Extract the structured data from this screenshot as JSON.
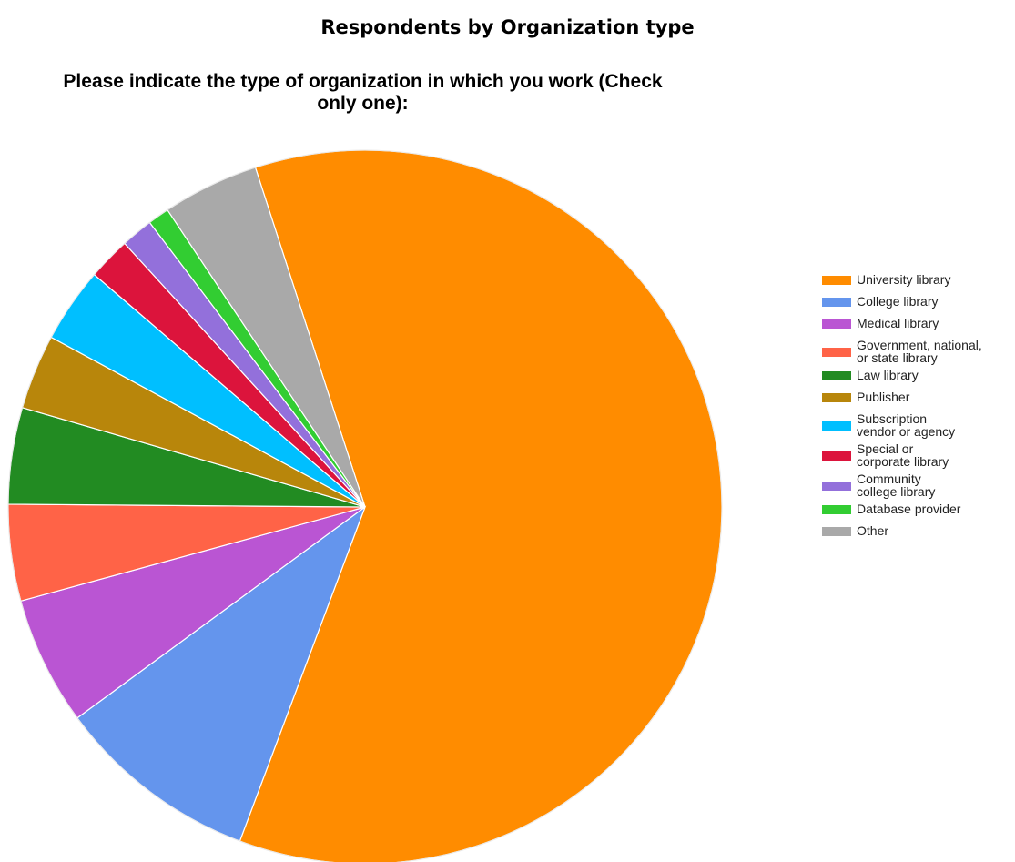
{
  "page_title": "Respondents by Organization type",
  "chart_data": {
    "type": "pie",
    "title_lines": [
      "Please indicate the type of organization in which you work (Check",
      "only one):"
    ],
    "legend_position": "right",
    "slices": [
      {
        "label": "University library",
        "value": 62.5,
        "color": "#ff8c00"
      },
      {
        "label": "College library",
        "value": 9.5,
        "color": "#6495ed"
      },
      {
        "label": "Medical library",
        "value": 6.0,
        "color": "#ba55d3"
      },
      {
        "label": "Government, national,\nor state library",
        "value": 4.5,
        "color": "#ff6347"
      },
      {
        "label": "Law library",
        "value": 4.5,
        "color": "#228b22"
      },
      {
        "label": "Publisher",
        "value": 3.5,
        "color": "#b8860b"
      },
      {
        "label": "Subscription\nvendor or agency",
        "value": 3.5,
        "color": "#00bfff"
      },
      {
        "label": "Special or\ncorporate library",
        "value": 2.0,
        "color": "#dc143c"
      },
      {
        "label": "Community\ncollege library",
        "value": 1.5,
        "color": "#9370db"
      },
      {
        "label": "Database provider",
        "value": 1.0,
        "color": "#32cd32"
      },
      {
        "label": "Other",
        "value": 4.5,
        "color": "#a9a9a9"
      }
    ]
  }
}
